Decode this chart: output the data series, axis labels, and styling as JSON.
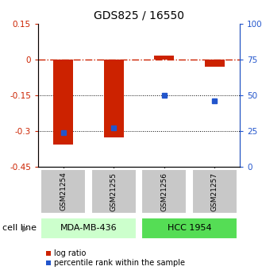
{
  "title": "GDS825 / 16550",
  "samples": [
    "GSM21254",
    "GSM21255",
    "GSM21256",
    "GSM21257"
  ],
  "log_ratios": [
    -0.355,
    -0.325,
    0.018,
    -0.03
  ],
  "percentile_ranks": [
    24.0,
    27.0,
    50.0,
    46.0
  ],
  "cell_lines": [
    {
      "name": "MDA-MB-436",
      "samples": [
        0,
        1
      ],
      "color": "#ccffcc"
    },
    {
      "name": "HCC 1954",
      "samples": [
        2,
        3
      ],
      "color": "#55dd55"
    }
  ],
  "ylim_left": [
    -0.45,
    0.15
  ],
  "ylim_right": [
    0,
    100
  ],
  "yticks_left": [
    0.15,
    0.0,
    -0.15,
    -0.3,
    -0.45
  ],
  "yticks_right": [
    100,
    75,
    50,
    25,
    0
  ],
  "bar_color": "#cc2200",
  "dot_color": "#2255cc",
  "bar_width": 0.4,
  "legend_labels": [
    "log ratio",
    "percentile rank within the sample"
  ]
}
